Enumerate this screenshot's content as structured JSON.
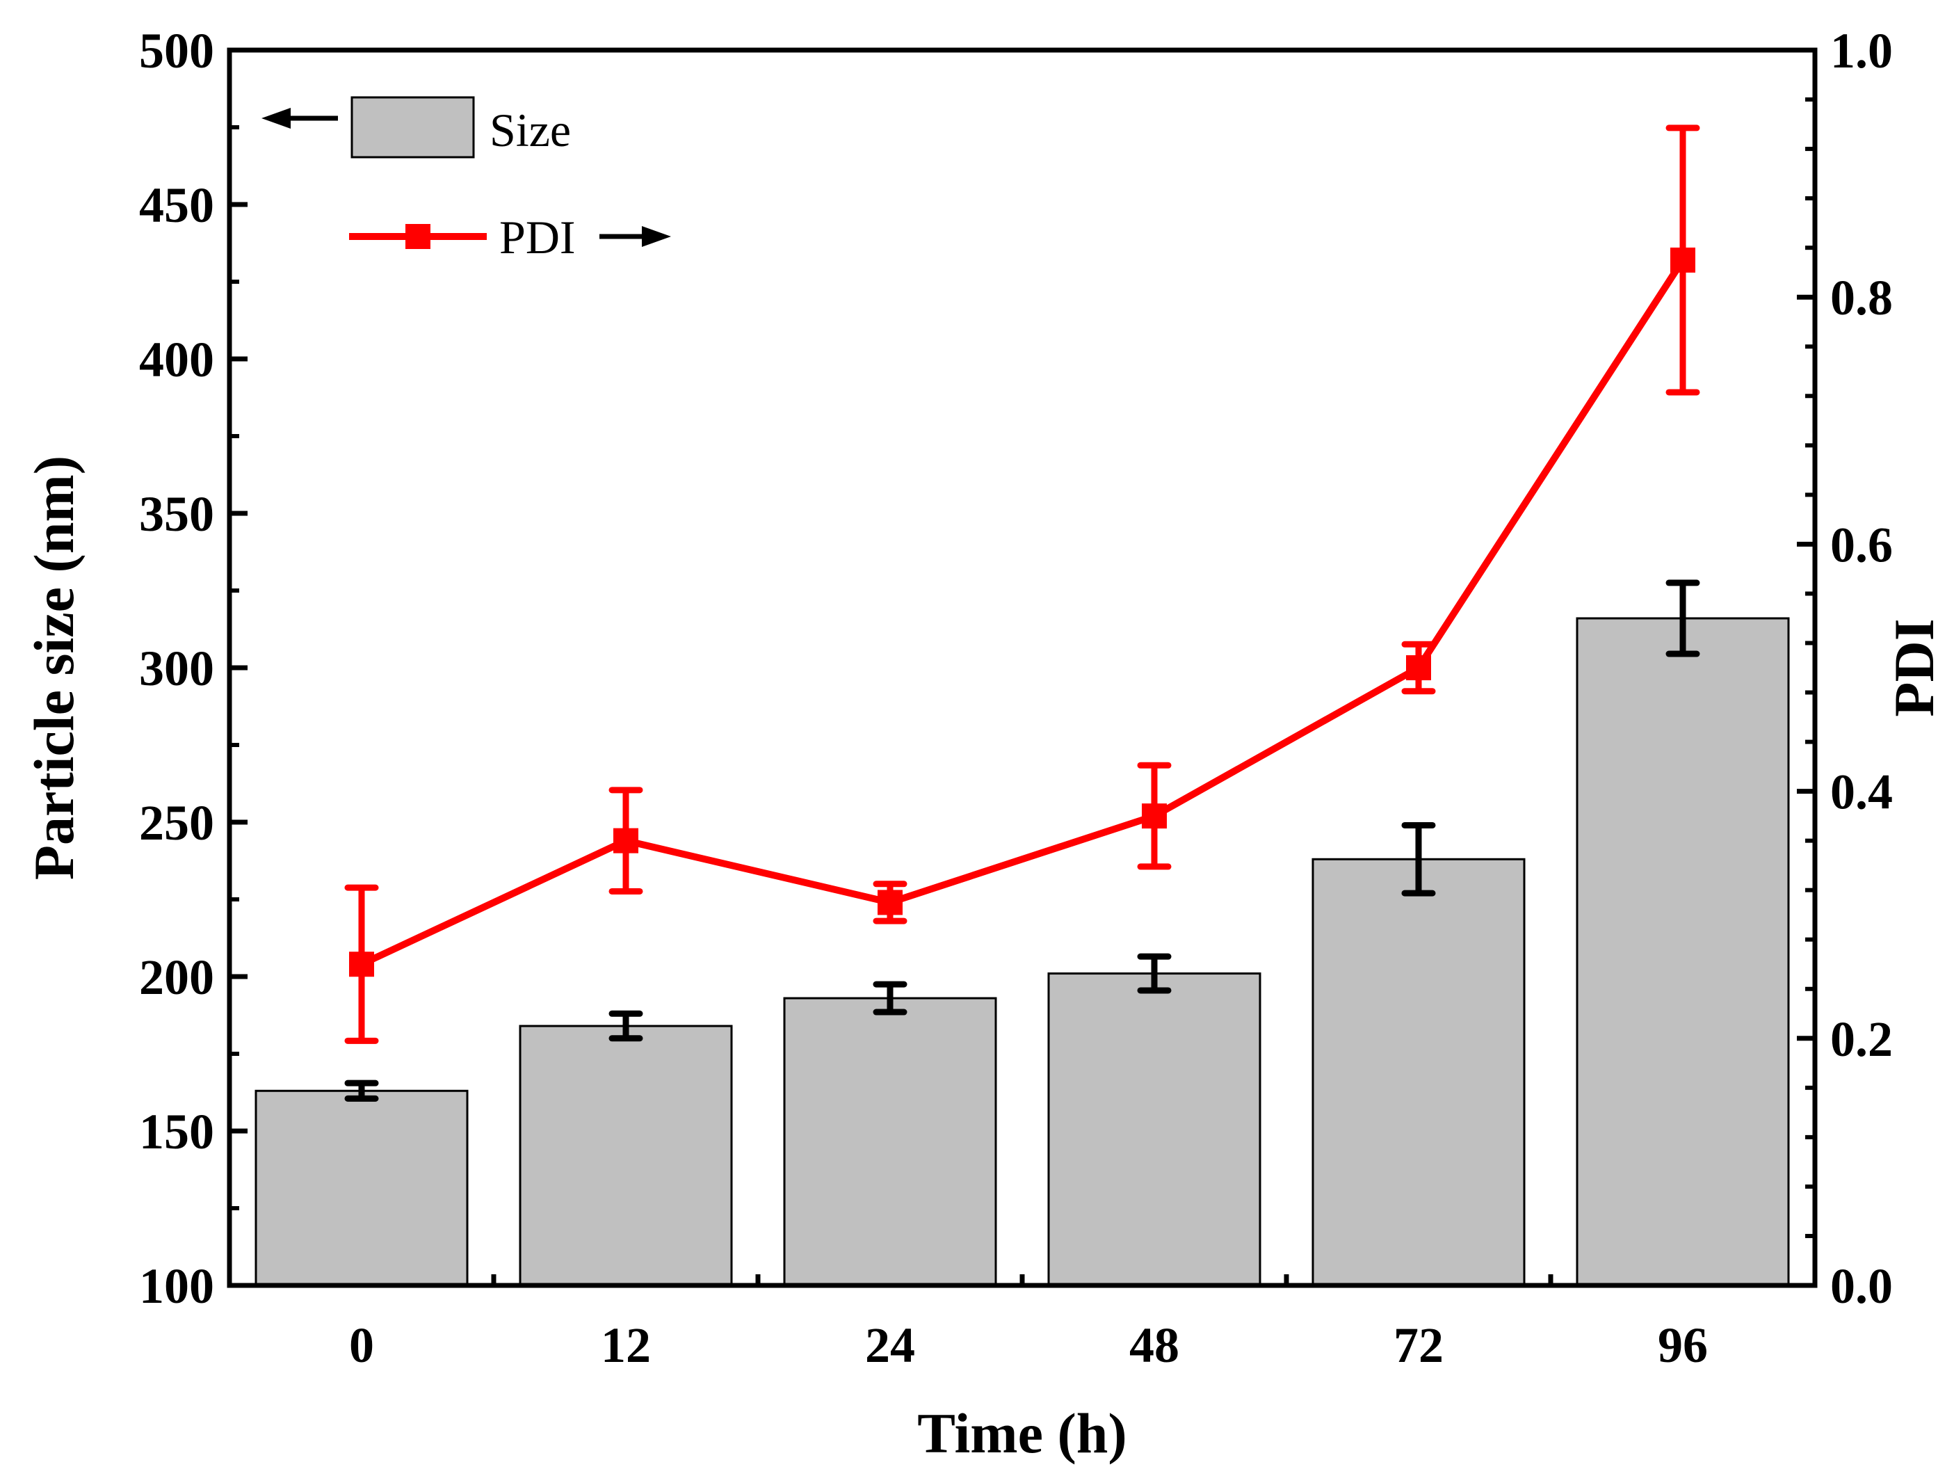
{
  "chart_data": {
    "type": "bar",
    "xlabel": "Time (h)",
    "ylabel": "Particle size (nm)",
    "y2label": "PDI",
    "categories": [
      "0",
      "12",
      "24",
      "48",
      "72",
      "96"
    ],
    "ylim": [
      100,
      500
    ],
    "y2lim": [
      0.0,
      1.0
    ],
    "yticks": [
      "100",
      "150",
      "200",
      "250",
      "300",
      "350",
      "400",
      "450",
      "500"
    ],
    "y2ticks": [
      "0.0",
      "0.2",
      "0.4",
      "0.6",
      "0.8",
      "1.0"
    ],
    "series": [
      {
        "name": "Size",
        "type": "bar",
        "axis": "left",
        "values": [
          163,
          184,
          193,
          201,
          238,
          316
        ],
        "errors": [
          2.5,
          4,
          4.5,
          5.5,
          11,
          11.5
        ],
        "color": "#c0c0c0"
      },
      {
        "name": "PDI",
        "type": "line",
        "axis": "right",
        "values": [
          0.26,
          0.36,
          0.31,
          0.38,
          0.5,
          0.83
        ],
        "errors": [
          0.062,
          0.041,
          0.015,
          0.041,
          0.019,
          0.107
        ],
        "color": "#ff0000"
      }
    ],
    "legend": {
      "position": "top-left",
      "size_label": "Size",
      "pdi_label": "PDI"
    },
    "grid": false
  }
}
